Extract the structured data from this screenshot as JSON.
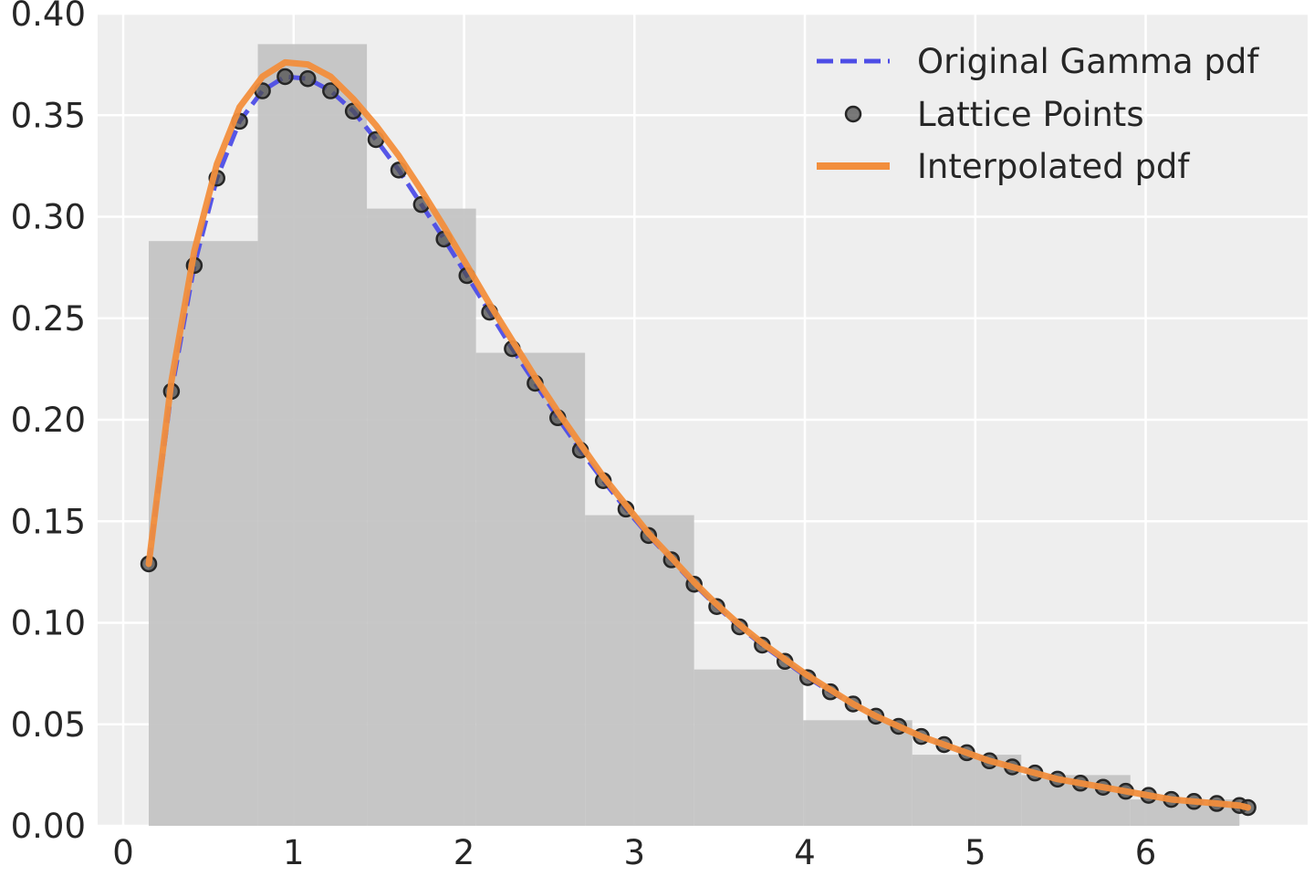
{
  "chart_data": {
    "type": "line",
    "title": "",
    "xlabel": "",
    "ylabel": "",
    "xlim": [
      -0.15,
      6.95
    ],
    "ylim": [
      0,
      0.4
    ],
    "grid": true,
    "legend_position": "top-right",
    "x_ticks": [
      0,
      1,
      2,
      3,
      4,
      5,
      6
    ],
    "x_tick_labels": [
      "0",
      "1",
      "2",
      "3",
      "4",
      "5",
      "6"
    ],
    "y_ticks": [
      0,
      0.05,
      0.1,
      0.15,
      0.2,
      0.25,
      0.3,
      0.35,
      0.4
    ],
    "y_tick_labels": [
      "0.00",
      "0.05",
      "0.10",
      "0.15",
      "0.20",
      "0.25",
      "0.30",
      "0.35",
      "0.40"
    ],
    "histogram": {
      "edges": [
        0.15,
        0.79,
        1.43,
        2.07,
        2.71,
        3.35,
        3.99,
        4.63,
        5.27,
        5.91,
        6.55
      ],
      "heights": [
        0.288,
        0.385,
        0.304,
        0.233,
        0.153,
        0.077,
        0.052,
        0.035,
        0.025,
        0.013
      ],
      "color": "#c2c2c2"
    },
    "series": [
      {
        "name": "Original Gamma pdf",
        "style": "dashed",
        "color": "#4d4de6",
        "x": [
          0.15,
          0.283,
          0.417,
          0.55,
          0.683,
          0.817,
          0.95,
          1.083,
          1.217,
          1.35,
          1.483,
          1.617,
          1.75,
          1.883,
          2.017,
          2.15,
          2.283,
          2.417,
          2.55,
          2.683,
          2.817,
          2.95,
          3.083,
          3.217,
          3.35,
          3.483,
          3.617,
          3.75,
          3.883,
          4.017,
          4.15,
          4.283,
          4.417,
          4.55,
          4.683,
          4.817,
          4.95,
          5.083,
          5.217,
          5.35,
          5.483,
          5.617,
          5.75,
          5.883,
          6.017,
          6.15,
          6.283,
          6.417,
          6.55,
          6.6
        ],
        "y": [
          0.129,
          0.214,
          0.276,
          0.319,
          0.347,
          0.362,
          0.369,
          0.368,
          0.362,
          0.352,
          0.338,
          0.323,
          0.306,
          0.289,
          0.271,
          0.253,
          0.235,
          0.218,
          0.201,
          0.185,
          0.17,
          0.156,
          0.143,
          0.131,
          0.119,
          0.108,
          0.098,
          0.089,
          0.081,
          0.073,
          0.066,
          0.06,
          0.054,
          0.049,
          0.044,
          0.04,
          0.036,
          0.032,
          0.029,
          0.026,
          0.023,
          0.021,
          0.019,
          0.017,
          0.015,
          0.013,
          0.012,
          0.011,
          0.01,
          0.009
        ]
      },
      {
        "name": "Lattice Points",
        "style": "markers",
        "color": "#4d4d4d",
        "x": [
          0.15,
          0.283,
          0.417,
          0.55,
          0.683,
          0.817,
          0.95,
          1.083,
          1.217,
          1.35,
          1.483,
          1.617,
          1.75,
          1.883,
          2.017,
          2.15,
          2.283,
          2.417,
          2.55,
          2.683,
          2.817,
          2.95,
          3.083,
          3.217,
          3.35,
          3.483,
          3.617,
          3.75,
          3.883,
          4.017,
          4.15,
          4.283,
          4.417,
          4.55,
          4.683,
          4.817,
          4.95,
          5.083,
          5.217,
          5.35,
          5.483,
          5.617,
          5.75,
          5.883,
          6.017,
          6.15,
          6.283,
          6.417,
          6.55,
          6.6
        ],
        "y": [
          0.129,
          0.214,
          0.276,
          0.319,
          0.347,
          0.362,
          0.369,
          0.368,
          0.362,
          0.352,
          0.338,
          0.323,
          0.306,
          0.289,
          0.271,
          0.253,
          0.235,
          0.218,
          0.201,
          0.185,
          0.17,
          0.156,
          0.143,
          0.131,
          0.119,
          0.108,
          0.098,
          0.089,
          0.081,
          0.073,
          0.066,
          0.06,
          0.054,
          0.049,
          0.044,
          0.04,
          0.036,
          0.032,
          0.029,
          0.026,
          0.023,
          0.021,
          0.019,
          0.017,
          0.015,
          0.013,
          0.012,
          0.011,
          0.01,
          0.009
        ]
      },
      {
        "name": "Interpolated pdf",
        "style": "solid",
        "color": "#f28e3c",
        "x": [
          0.15,
          0.283,
          0.417,
          0.55,
          0.683,
          0.817,
          0.95,
          1.083,
          1.217,
          1.35,
          1.483,
          1.617,
          1.75,
          1.883,
          2.017,
          2.15,
          2.283,
          2.417,
          2.55,
          2.683,
          2.817,
          2.95,
          3.083,
          3.217,
          3.35,
          3.483,
          3.617,
          3.75,
          3.883,
          4.017,
          4.15,
          4.283,
          4.417,
          4.55,
          4.683,
          4.817,
          4.95,
          5.083,
          5.217,
          5.35,
          5.483,
          5.617,
          5.75,
          5.883,
          6.017,
          6.15,
          6.283,
          6.417,
          6.55,
          6.6
        ],
        "y": [
          0.129,
          0.219,
          0.283,
          0.326,
          0.354,
          0.369,
          0.376,
          0.375,
          0.369,
          0.358,
          0.345,
          0.33,
          0.313,
          0.295,
          0.276,
          0.257,
          0.239,
          0.221,
          0.204,
          0.188,
          0.172,
          0.158,
          0.144,
          0.132,
          0.12,
          0.109,
          0.099,
          0.09,
          0.082,
          0.074,
          0.067,
          0.06,
          0.054,
          0.049,
          0.044,
          0.04,
          0.036,
          0.032,
          0.029,
          0.026,
          0.023,
          0.021,
          0.019,
          0.017,
          0.015,
          0.013,
          0.012,
          0.011,
          0.01,
          0.009
        ]
      }
    ]
  }
}
